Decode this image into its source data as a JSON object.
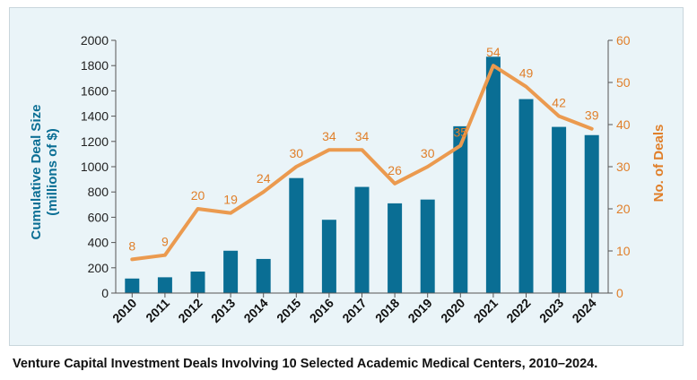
{
  "caption": "Venture Capital Investment Deals Involving 10 Selected Academic Medical Centers, 2010–2024.",
  "colors": {
    "bar": "#0a6e94",
    "line": "#eb9a4f",
    "left_axis_text": "#0a6e94",
    "right_axis_text": "#e07f2a",
    "panel_bg": "#eaf4f8"
  },
  "chart_data": {
    "type": "bar",
    "categories": [
      "2010",
      "2011",
      "2012",
      "2013",
      "2014",
      "2015",
      "2016",
      "2017",
      "2018",
      "2019",
      "2020",
      "2021",
      "2022",
      "2023",
      "2024"
    ],
    "series": [
      {
        "type": "bar",
        "axis": "left",
        "values": [
          115,
          125,
          170,
          335,
          270,
          910,
          580,
          840,
          710,
          740,
          1320,
          1870,
          1535,
          1315,
          1250
        ]
      },
      {
        "type": "line",
        "axis": "right",
        "values": [
          8,
          9,
          20,
          19,
          24,
          30,
          34,
          34,
          26,
          30,
          35,
          54,
          49,
          42,
          39
        ]
      }
    ],
    "ylabel": "Cumulative Deal Size\n(millions of $)",
    "y2label": "No. of Deals",
    "ylim": [
      0,
      2000
    ],
    "y2lim": [
      0,
      60
    ],
    "yticks": [
      0,
      200,
      400,
      600,
      800,
      1000,
      1200,
      1400,
      1600,
      1800,
      2000
    ],
    "y2ticks": [
      0,
      10,
      20,
      30,
      40,
      50,
      60
    ],
    "grid": false,
    "legend": "none"
  }
}
